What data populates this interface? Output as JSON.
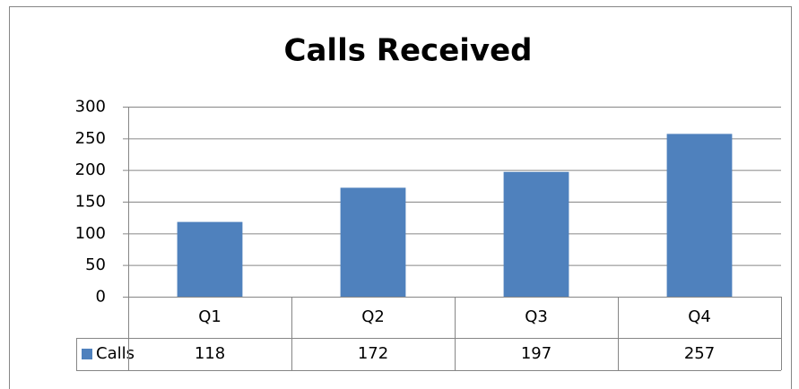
{
  "chart_data": {
    "type": "bar",
    "title": "Calls Received",
    "categories": [
      "Q1",
      "Q2",
      "Q3",
      "Q4"
    ],
    "series": [
      {
        "name": "Calls",
        "color": "#4f81bd",
        "values": [
          118,
          172,
          197,
          257
        ]
      }
    ],
    "ylim": [
      0,
      300
    ],
    "yticks": [
      0,
      50,
      100,
      150,
      200,
      250,
      300
    ],
    "grid": true,
    "data_table": true
  }
}
